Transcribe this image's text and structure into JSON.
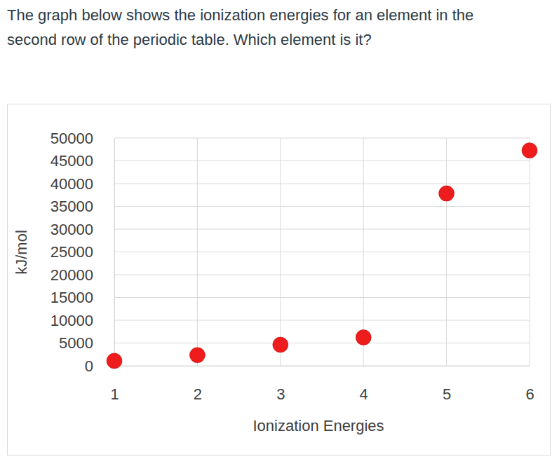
{
  "chart_data": {
    "type": "scatter",
    "title": "The graph below shows the ionization energies for an element in the second row of the periodic table. Which element is it?",
    "x_label": "Ionization Energies",
    "y_label": "kJ/mol",
    "x": [
      1,
      2,
      3,
      4,
      5,
      6
    ],
    "values": [
      1086,
      2353,
      4620,
      6223,
      37831,
      47277
    ],
    "color": "#ee1c1c",
    "marker": "circle",
    "xlim": [
      1,
      6
    ],
    "xticks": [
      1,
      2,
      3,
      4,
      5,
      6
    ],
    "ylim": [
      0,
      50000
    ],
    "yticks": [
      0,
      5000,
      10000,
      15000,
      20000,
      25000,
      30000,
      35000,
      40000,
      45000,
      50000
    ],
    "grid": true
  }
}
